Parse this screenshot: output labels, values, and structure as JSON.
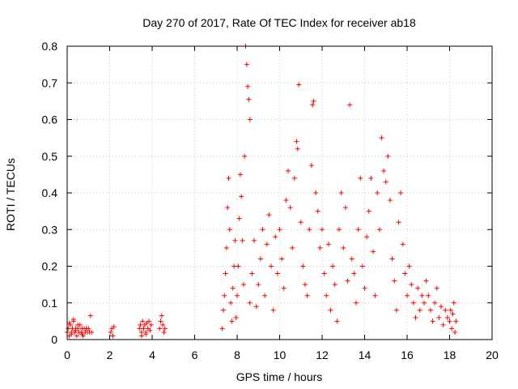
{
  "chart_data": {
    "type": "scatter",
    "title": "Day 270 of 2017, Rate Of TEC Index for receiver ab18",
    "xlabel": "GPS time / hours",
    "ylabel": "ROTI / TECUs",
    "xlim": [
      0,
      20
    ],
    "ylim": [
      0,
      0.8
    ],
    "grid": true,
    "marker": "+",
    "marker_color": "#ff0000",
    "x_ticks": [
      0,
      2,
      4,
      6,
      8,
      10,
      12,
      14,
      16,
      18,
      20
    ],
    "x_tick_labels": [
      "0",
      "2",
      "4",
      "6",
      "8",
      "10",
      "12",
      "14",
      "16",
      "18",
      "20"
    ],
    "y_ticks": [
      0,
      0.1,
      0.2,
      0.3,
      0.4,
      0.5,
      0.6,
      0.7,
      0.8
    ],
    "y_tick_labels": [
      "0",
      "0.1",
      "0.2",
      "0.3",
      "0.4",
      "0.5",
      "0.6",
      "0.7",
      "0.8"
    ],
    "series": [
      {
        "name": "ab18",
        "points": [
          [
            0.0,
            0.02
          ],
          [
            0.05,
            0.03
          ],
          [
            0.1,
            0.01
          ],
          [
            0.15,
            0.04
          ],
          [
            0.2,
            0.02
          ],
          [
            0.25,
            0.03
          ],
          [
            0.3,
            0.05
          ],
          [
            0.35,
            0.02
          ],
          [
            0.4,
            0.03
          ],
          [
            0.45,
            0.01
          ],
          [
            0.5,
            0.03
          ],
          [
            0.55,
            0.02
          ],
          [
            0.6,
            0.04
          ],
          [
            0.65,
            0.02
          ],
          [
            0.7,
            0.03
          ],
          [
            0.75,
            0.01
          ],
          [
            0.8,
            0.03
          ],
          [
            0.85,
            0.02
          ],
          [
            0.9,
            0.03
          ],
          [
            0.95,
            0.02
          ],
          [
            1.0,
            0.03
          ],
          [
            1.05,
            0.02
          ],
          [
            1.1,
            0.065
          ],
          [
            1.15,
            0.02
          ],
          [
            0.1,
            0.045
          ],
          [
            0.3,
            0.055
          ],
          [
            0.5,
            0.04
          ],
          [
            0.2,
            0.015
          ],
          [
            0.4,
            0.025
          ],
          [
            0.7,
            0.015
          ],
          [
            2.05,
            0.02
          ],
          [
            2.1,
            0.03
          ],
          [
            2.15,
            0.01
          ],
          [
            2.2,
            0.035
          ],
          [
            3.4,
            0.03
          ],
          [
            3.45,
            0.04
          ],
          [
            3.5,
            0.02
          ],
          [
            3.55,
            0.05
          ],
          [
            3.6,
            0.03
          ],
          [
            3.65,
            0.04
          ],
          [
            3.7,
            0.02
          ],
          [
            3.75,
            0.045
          ],
          [
            3.8,
            0.03
          ],
          [
            3.85,
            0.05
          ],
          [
            3.9,
            0.025
          ],
          [
            3.95,
            0.04
          ],
          [
            3.5,
            0.01
          ],
          [
            3.7,
            0.015
          ],
          [
            4.35,
            0.03
          ],
          [
            4.4,
            0.05
          ],
          [
            4.45,
            0.065
          ],
          [
            4.5,
            0.04
          ],
          [
            4.55,
            0.02
          ],
          [
            4.6,
            0.03
          ],
          [
            7.3,
            0.03
          ],
          [
            7.35,
            0.08
          ],
          [
            7.4,
            0.12
          ],
          [
            7.45,
            0.18
          ],
          [
            7.5,
            0.25
          ],
          [
            7.55,
            0.36
          ],
          [
            7.6,
            0.44
          ],
          [
            7.65,
            0.3
          ],
          [
            7.7,
            0.1
          ],
          [
            7.75,
            0.05
          ],
          [
            7.8,
            0.14
          ],
          [
            7.85,
            0.2
          ],
          [
            7.9,
            0.27
          ],
          [
            7.95,
            0.06
          ],
          [
            8.0,
            0.12
          ],
          [
            8.05,
            0.2
          ],
          [
            8.1,
            0.33
          ],
          [
            8.15,
            0.45
          ],
          [
            8.2,
            0.39
          ],
          [
            8.25,
            0.27
          ],
          [
            8.3,
            0.15
          ],
          [
            8.35,
            0.5
          ],
          [
            8.4,
            0.8
          ],
          [
            8.45,
            0.75
          ],
          [
            8.5,
            0.69
          ],
          [
            8.55,
            0.655
          ],
          [
            8.6,
            0.6
          ],
          [
            8.6,
            0.1
          ],
          [
            8.7,
            0.18
          ],
          [
            8.8,
            0.27
          ],
          [
            8.9,
            0.09
          ],
          [
            9.0,
            0.15
          ],
          [
            9.1,
            0.22
          ],
          [
            9.2,
            0.3
          ],
          [
            9.3,
            0.12
          ],
          [
            9.4,
            0.26
          ],
          [
            9.5,
            0.34
          ],
          [
            9.6,
            0.2
          ],
          [
            9.7,
            0.08
          ],
          [
            9.8,
            0.28
          ],
          [
            9.9,
            0.18
          ],
          [
            10.0,
            0.3
          ],
          [
            10.1,
            0.22
          ],
          [
            10.2,
            0.14
          ],
          [
            10.3,
            0.38
          ],
          [
            10.4,
            0.46
          ],
          [
            10.5,
            0.36
          ],
          [
            10.6,
            0.25
          ],
          [
            10.7,
            0.44
          ],
          [
            10.8,
            0.54
          ],
          [
            10.85,
            0.52
          ],
          [
            10.9,
            0.695
          ],
          [
            11.0,
            0.32
          ],
          [
            11.1,
            0.2
          ],
          [
            11.2,
            0.15
          ],
          [
            11.3,
            0.12
          ],
          [
            11.4,
            0.3
          ],
          [
            11.5,
            0.475
          ],
          [
            11.55,
            0.64
          ],
          [
            11.6,
            0.65
          ],
          [
            11.7,
            0.4
          ],
          [
            11.8,
            0.35
          ],
          [
            11.9,
            0.25
          ],
          [
            12.0,
            0.3
          ],
          [
            12.1,
            0.18
          ],
          [
            12.2,
            0.12
          ],
          [
            12.3,
            0.26
          ],
          [
            12.4,
            0.08
          ],
          [
            12.5,
            0.2
          ],
          [
            12.6,
            0.15
          ],
          [
            12.7,
            0.05
          ],
          [
            12.8,
            0.3
          ],
          [
            12.9,
            0.4
          ],
          [
            13.0,
            0.25
          ],
          [
            13.1,
            0.36
          ],
          [
            13.2,
            0.16
          ],
          [
            13.3,
            0.64
          ],
          [
            13.4,
            0.22
          ],
          [
            13.5,
            0.18
          ],
          [
            13.6,
            0.1
          ],
          [
            13.7,
            0.3
          ],
          [
            13.8,
            0.44
          ],
          [
            13.9,
            0.2
          ],
          [
            14.0,
            0.14
          ],
          [
            14.1,
            0.28
          ],
          [
            14.2,
            0.35
          ],
          [
            14.3,
            0.44
          ],
          [
            14.4,
            0.24
          ],
          [
            14.5,
            0.12
          ],
          [
            14.6,
            0.4
          ],
          [
            14.7,
            0.3
          ],
          [
            14.8,
            0.55
          ],
          [
            14.9,
            0.46
          ],
          [
            15.0,
            0.43
          ],
          [
            15.1,
            0.5
          ],
          [
            15.2,
            0.38
          ],
          [
            15.3,
            0.22
          ],
          [
            15.4,
            0.16
          ],
          [
            15.5,
            0.08
          ],
          [
            15.6,
            0.32
          ],
          [
            15.7,
            0.4
          ],
          [
            15.8,
            0.26
          ],
          [
            15.9,
            0.18
          ],
          [
            16.0,
            0.12
          ],
          [
            16.1,
            0.2
          ],
          [
            16.2,
            0.15
          ],
          [
            16.3,
            0.1
          ],
          [
            16.4,
            0.06
          ],
          [
            16.5,
            0.14
          ],
          [
            16.6,
            0.08
          ],
          [
            16.7,
            0.12
          ],
          [
            16.8,
            0.1
          ],
          [
            16.9,
            0.16
          ],
          [
            17.0,
            0.12
          ],
          [
            17.1,
            0.08
          ],
          [
            17.2,
            0.05
          ],
          [
            17.3,
            0.1
          ],
          [
            17.4,
            0.14
          ],
          [
            17.5,
            0.06
          ],
          [
            17.6,
            0.09
          ],
          [
            17.7,
            0.04
          ],
          [
            17.8,
            0.08
          ],
          [
            17.9,
            0.06
          ],
          [
            18.0,
            0.05
          ],
          [
            18.05,
            0.08
          ],
          [
            18.1,
            0.03
          ],
          [
            18.15,
            0.07
          ],
          [
            18.2,
            0.1
          ],
          [
            18.25,
            0.02
          ],
          [
            18.3,
            0.05
          ]
        ]
      }
    ]
  }
}
